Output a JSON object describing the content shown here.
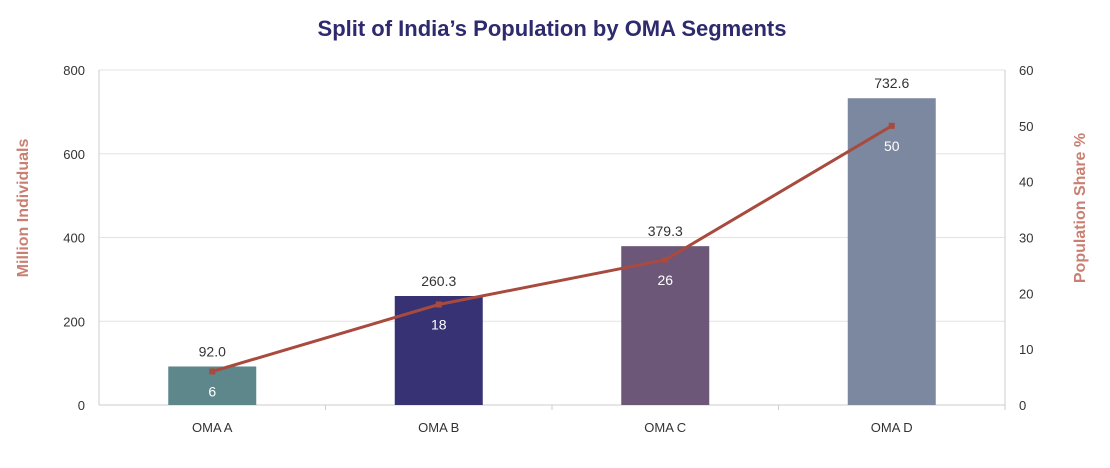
{
  "chart_data": {
    "type": "bar",
    "title": "Split of India’s Population by OMA Segments",
    "categories": [
      "OMA A",
      "OMA B",
      "OMA C",
      "OMA D"
    ],
    "series": [
      {
        "name": "Million Individuals",
        "type": "bar",
        "axis": "left",
        "values": [
          92.0,
          260.3,
          379.3,
          732.6
        ],
        "value_labels": [
          "92.0",
          "260.3",
          "379.3",
          "732.6"
        ],
        "colors": [
          "#5e878b",
          "#363273",
          "#6c5779",
          "#7b889f"
        ]
      },
      {
        "name": "Population Share %",
        "type": "line",
        "axis": "right",
        "values": [
          6,
          18,
          26,
          50
        ],
        "value_labels": [
          "6",
          "18",
          "26",
          "50"
        ],
        "color": "#a84a3e"
      }
    ],
    "ylabel": "Million Individuals",
    "ylim": [
      0,
      800
    ],
    "yticks": [
      "0",
      "200",
      "400",
      "600",
      "800"
    ],
    "y2label": "Population Share %",
    "y2lim": [
      0,
      60
    ],
    "y2ticks": [
      "0",
      "10",
      "20",
      "30",
      "40",
      "50",
      "60"
    ],
    "grid": true,
    "colors": {
      "title": "#2d2a6e",
      "axis_title": "#c97f72",
      "grid": "#e3e3e3",
      "axis": "#cccccc"
    }
  }
}
